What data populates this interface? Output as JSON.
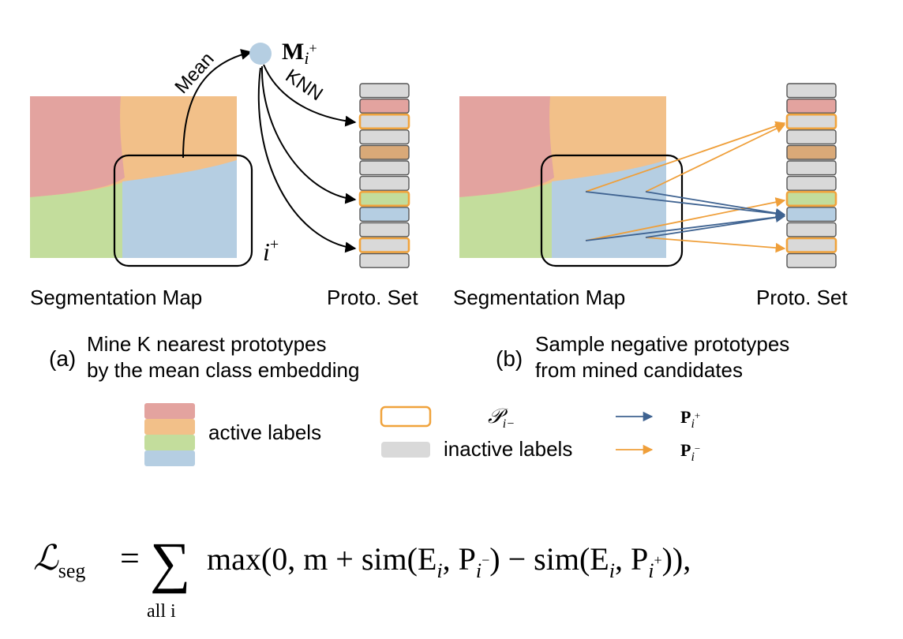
{
  "panel_a": {
    "mean_label": "Mean",
    "knn_label": "KNN",
    "mean_embedding_main": "M",
    "mean_embedding_sub": "i",
    "mean_embedding_sup": "+",
    "region_main": "i",
    "region_sup": "+",
    "seg_map_label": "Segmentation Map",
    "proto_set_label": "Proto. Set",
    "caption_tag": "(a)",
    "caption_line1": "Mine K nearest prototypes",
    "caption_line2": "by the mean class embedding"
  },
  "panel_b": {
    "seg_map_label": "Segmentation Map",
    "proto_set_label": "Proto. Set",
    "caption_tag": "(b)",
    "caption_line1": "Sample negative prototypes",
    "caption_line2": "from mined candidates"
  },
  "legend": {
    "active_labels": "active labels",
    "inactive_labels": "inactive labels",
    "candidate_set_main": "𝒫",
    "candidate_set_sub": "i−",
    "positive_main": "P",
    "positive_sub": "i",
    "positive_sup": "+",
    "negative_main": "P",
    "negative_sub": "i",
    "negative_sup": "−"
  },
  "equation": {
    "lhs_main": "ℒ",
    "lhs_sub": "seg",
    "equals": "=",
    "sum_symbol": "∑",
    "sum_under": "all i",
    "term_max": "max(0, m + sim(E",
    "term_sub1": "i",
    "term_mid1": ", P",
    "term_sub2": "i",
    "term_sup2": "−",
    "term_mid2": ") − sim(E",
    "term_sub3": "i",
    "term_mid3": ", P",
    "term_sub4": "i",
    "term_sup4": "+",
    "term_end": ")),"
  },
  "colors": {
    "red_region": "#e3a39f",
    "orange_region": "#f2c089",
    "green_region": "#c3dd9c",
    "blue_region": "#b5cee2",
    "proto_gray": "#d9d9d9",
    "proto_brown": "#d9a978",
    "candidate_border": "#f0a33c",
    "positive_arrow": "#3f6391",
    "negative_arrow": "#ef9f3a",
    "knn_arrow": "#000000",
    "mean_node": "#b5cee2"
  }
}
